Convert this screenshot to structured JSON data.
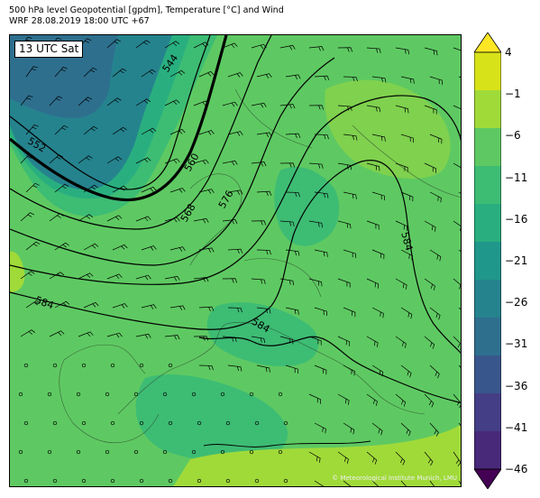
{
  "header": {
    "line1": "500 hPa level Geopotential [gpdm], Temperature [°C] and Wind",
    "line2": "WRF 28.08.2019 18:00 UTC +67"
  },
  "map": {
    "run_label": "13 UTC Sat",
    "copyright": "© Meteorological Institute Munich, LMU",
    "contour_labels": [
      "544",
      "552",
      "560",
      "568",
      "576",
      "584",
      "584",
      "584"
    ]
  },
  "colorbar": {
    "ticks": [
      "4",
      "−1",
      "−6",
      "−11",
      "−16",
      "−21",
      "−26",
      "−31",
      "−36",
      "−41",
      "−46"
    ],
    "colors": [
      "#fde725",
      "#d8e219",
      "#a0da39",
      "#5ec962",
      "#3dbc74",
      "#29af7f",
      "#1f978b",
      "#25838e",
      "#2e6f8e",
      "#39568c",
      "#433e85",
      "#482979",
      "#440154"
    ]
  }
}
